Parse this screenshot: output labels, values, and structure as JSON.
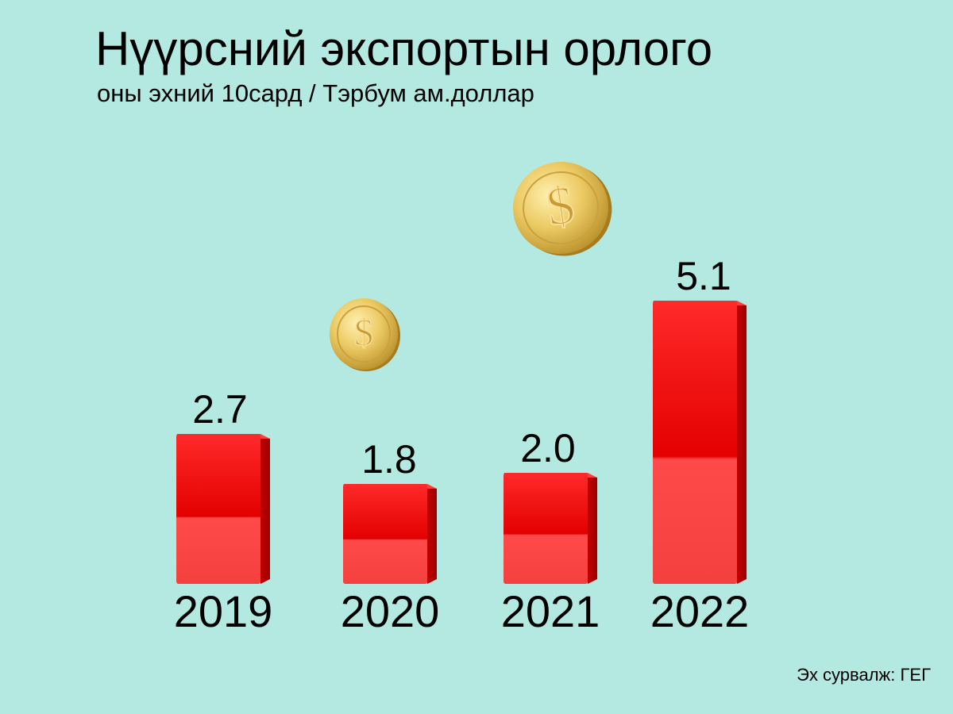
{
  "header": {
    "title": "Нүүрсний экспортын орлого",
    "subtitle": "оны эхний 10сард / Тэрбум ам.доллар"
  },
  "source": "Эх сурвалж: ГЕГ",
  "colors": {
    "background": "#b3e9e1",
    "bar": "#e40000",
    "bar_side": "#b80000",
    "bar_highlight": "#ff4a4a",
    "coin": "#e6c25a"
  },
  "icons": [
    "dollar-coin-icon",
    "dollar-coin-icon"
  ],
  "chart_data": {
    "type": "bar",
    "categories": [
      "2019",
      "2020",
      "2021",
      "2022"
    ],
    "values": [
      2.7,
      1.8,
      2.0,
      5.1
    ],
    "value_labels": [
      "2.7",
      "1.8",
      "2.0",
      "5.1"
    ],
    "title": "Нүүрсний экспортын орлого",
    "subtitle": "оны эхний 10сард / Тэрбум ам.доллар",
    "xlabel": "",
    "ylabel": "",
    "grid": false,
    "legend": "none"
  }
}
